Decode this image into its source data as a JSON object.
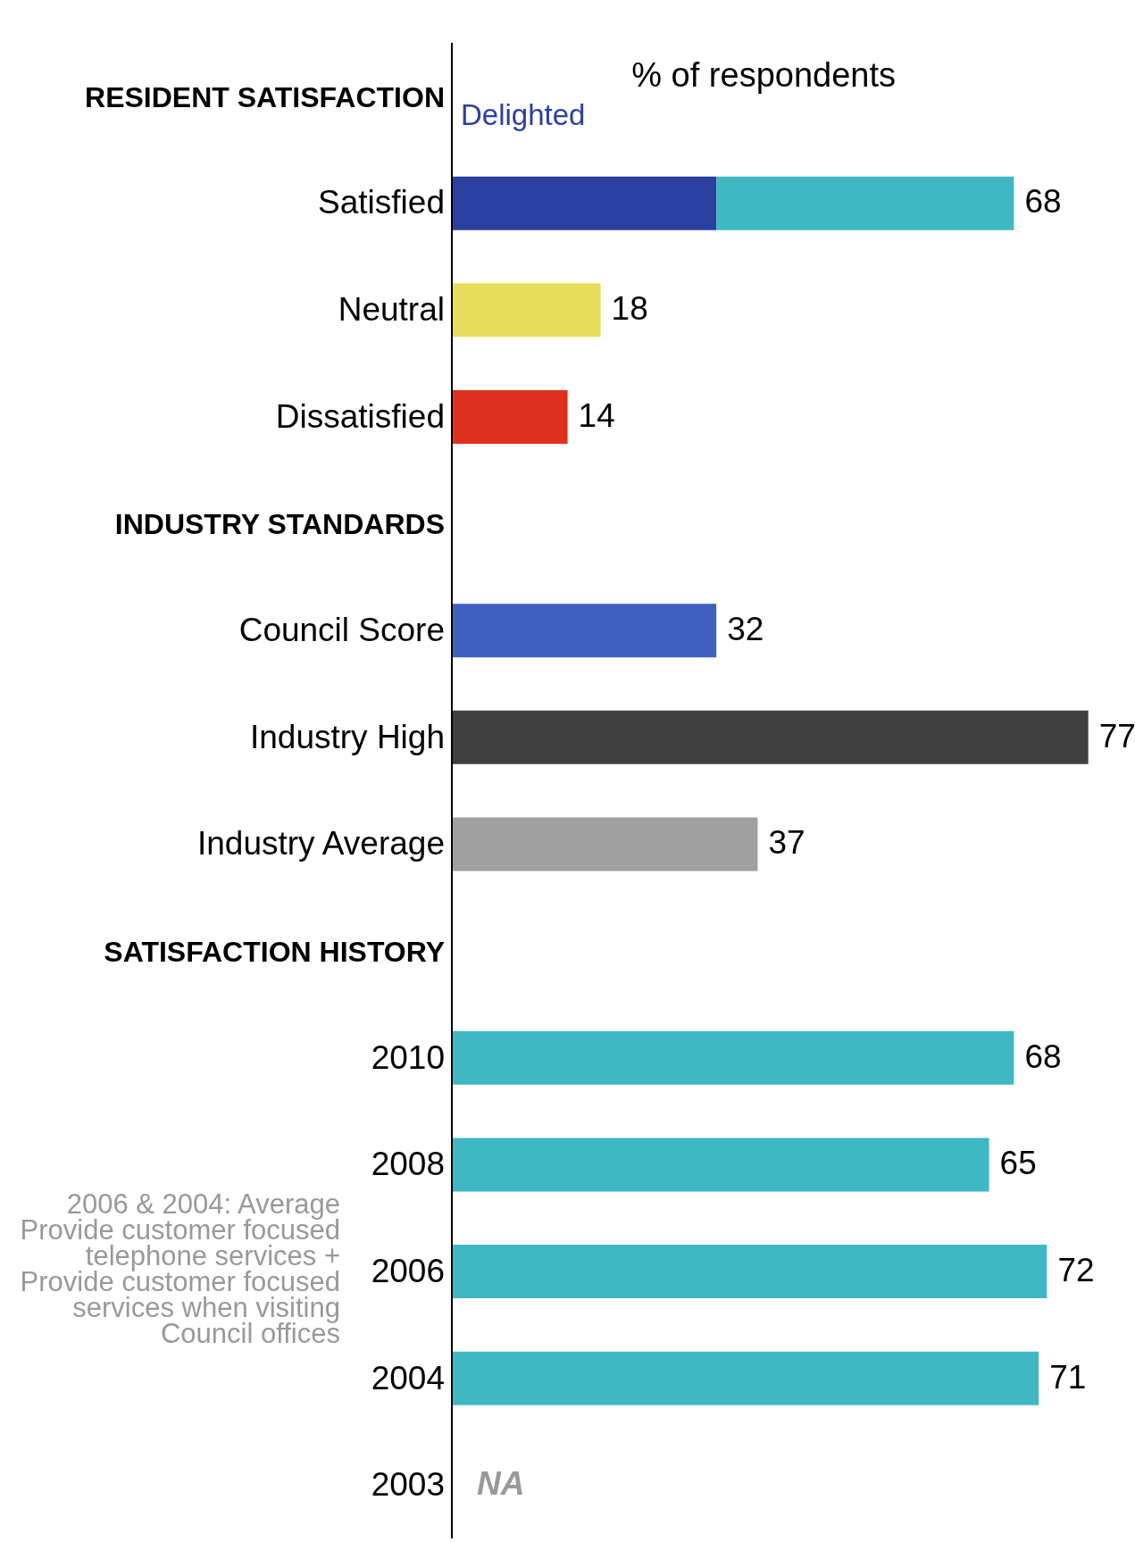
{
  "chart_data": {
    "type": "bar",
    "orientation": "horizontal",
    "stacked": true,
    "xlabel": "% of respondents",
    "categories": [
      "RESIDENT SATISFACTION",
      "Satisfied",
      "Neutral",
      "Dissatisfied",
      "INDUSTRY STANDARDS",
      "Council Score",
      "Industry High",
      "Industry Average",
      "SATISFACTION HISTORY",
      "2010",
      "2008",
      "2006",
      "2004",
      "2003"
    ],
    "series": [
      {
        "name": "Delighted",
        "color": "#2b3fa0",
        "values": [
          null,
          32,
          null,
          null,
          null,
          null,
          null,
          null,
          null,
          null,
          null,
          null,
          null,
          null
        ]
      },
      {
        "color": "#3fb8c4",
        "colors": [
          "#3fb8c4",
          "#3fb8c4",
          "#e8dc5a",
          "#e03020",
          "#3fb8c4",
          "#4060c0",
          "#404040",
          "#a0a0a0",
          "#3fb8c4",
          "#3fb8c4",
          "#3fb8c4",
          "#3fb8c4",
          "#3fb8c4",
          "#3fb8c4"
        ],
        "values": [
          null,
          36,
          18,
          14,
          null,
          32,
          77,
          37,
          null,
          68,
          65,
          72,
          71,
          null
        ],
        "value_labels": [
          null,
          null,
          "18",
          "14",
          null,
          "32",
          "77",
          "37",
          null,
          "68",
          "65",
          "72",
          "71",
          "NA"
        ]
      }
    ],
    "totals": [
      null,
      "68",
      null,
      null,
      null,
      null,
      null,
      null,
      null,
      null,
      null,
      null,
      null,
      null
    ],
    "tick_labels": "y",
    "legend": "top left",
    "annotations": [
      "2006 & 2004: Average\nProvide customer focused telephone services +\nProvide customer focused services when visiting Council offices"
    ]
  }
}
